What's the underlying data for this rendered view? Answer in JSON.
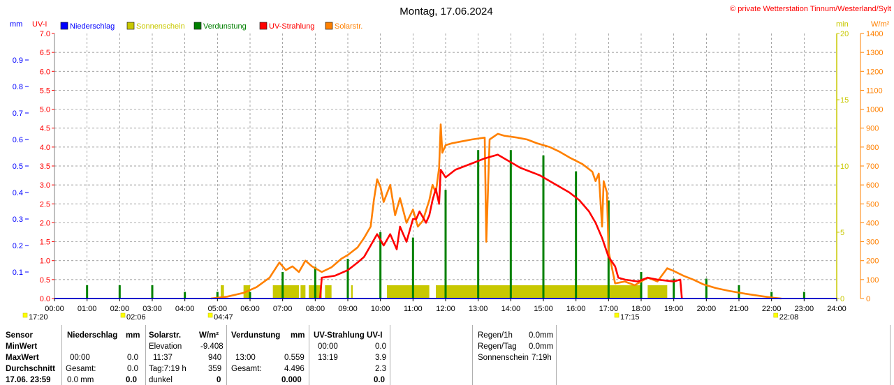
{
  "title": "Montag, 17.06.2024",
  "copyright": "© private Wetterstation Tinnum/Westerland/Sylt",
  "units": {
    "mm": "mm",
    "uvi": "UV-I",
    "min": "min",
    "wm2": "W/m²"
  },
  "legend": [
    {
      "label": "Niederschlag",
      "color": "#0000ff"
    },
    {
      "label": "Sonnenschein",
      "color": "#c8c800"
    },
    {
      "label": "Verdunstung",
      "color": "#008000"
    },
    {
      "label": "UV-Strahlung",
      "color": "#ff0000"
    },
    {
      "label": "Solarstr.",
      "color": "#ff8000"
    }
  ],
  "axis_ticks": {
    "uvi": [
      "0.0",
      "0.5",
      "1.0",
      "1.5",
      "2.0",
      "2.5",
      "3.0",
      "3.5",
      "4.0",
      "4.5",
      "5.0",
      "5.5",
      "6.0",
      "6.5",
      "7.0"
    ],
    "mm": [
      "0.1",
      "0.2",
      "0.3",
      "0.4",
      "0.5",
      "0.6",
      "0.7",
      "0.8",
      "0.9"
    ],
    "min": [
      "0",
      "5",
      "10",
      "15",
      "20"
    ],
    "wm2": [
      "0",
      "100",
      "200",
      "300",
      "400",
      "500",
      "600",
      "700",
      "800",
      "900",
      "1000",
      "1100",
      "1200",
      "1300",
      "1400"
    ],
    "hours": [
      "00:00",
      "01:00",
      "02:00",
      "03:00",
      "04:00",
      "05:00",
      "06:00",
      "07:00",
      "08:00",
      "09:00",
      "10:00",
      "11:00",
      "12:00",
      "13:00",
      "14:00",
      "15:00",
      "16:00",
      "17:00",
      "18:00",
      "19:00",
      "20:00",
      "21:00",
      "22:00",
      "23:00",
      "24:00"
    ]
  },
  "sun_marks": [
    {
      "label": "17:20",
      "hour": -0.9
    },
    {
      "label": "02:06",
      "hour": 2.1
    },
    {
      "label": "04:47",
      "hour": 4.78
    },
    {
      "label": "17:15",
      "hour": 17.25
    },
    {
      "label": "22:08",
      "hour": 22.13
    }
  ],
  "colors": {
    "grid": "#808080",
    "axis_left": "#0000ff",
    "axis_uvi": "#ff0000",
    "axis_min": "#c8c800",
    "axis_wm2": "#ff8000"
  },
  "chart_data": {
    "type": "line",
    "title": "Montag, 17.06.2024",
    "x_range_hours": [
      0,
      24
    ],
    "ylim": {
      "uvi": [
        0,
        7
      ],
      "mm": [
        0,
        1
      ],
      "min": [
        0,
        20
      ],
      "wm2": [
        0,
        1400
      ]
    },
    "series": [
      {
        "name": "Solarstr.",
        "axis": "wm2",
        "color": "#ff8000",
        "points": [
          [
            4.8,
            0
          ],
          [
            5.3,
            10
          ],
          [
            5.8,
            30
          ],
          [
            6.2,
            60
          ],
          [
            6.6,
            110
          ],
          [
            6.9,
            190
          ],
          [
            7.1,
            150
          ],
          [
            7.3,
            170
          ],
          [
            7.5,
            140
          ],
          [
            7.7,
            200
          ],
          [
            7.9,
            170
          ],
          [
            8.2,
            140
          ],
          [
            8.5,
            165
          ],
          [
            8.8,
            210
          ],
          [
            9.0,
            230
          ],
          [
            9.3,
            270
          ],
          [
            9.5,
            320
          ],
          [
            9.7,
            380
          ],
          [
            9.8,
            520
          ],
          [
            9.9,
            630
          ],
          [
            10.0,
            590
          ],
          [
            10.1,
            510
          ],
          [
            10.3,
            600
          ],
          [
            10.45,
            440
          ],
          [
            10.6,
            530
          ],
          [
            10.8,
            400
          ],
          [
            11.0,
            470
          ],
          [
            11.15,
            380
          ],
          [
            11.3,
            410
          ],
          [
            11.5,
            520
          ],
          [
            11.6,
            600
          ],
          [
            11.7,
            560
          ],
          [
            11.8,
            690
          ],
          [
            11.85,
            920
          ],
          [
            11.9,
            770
          ],
          [
            12.0,
            810
          ],
          [
            12.2,
            820
          ],
          [
            12.5,
            830
          ],
          [
            12.8,
            840
          ],
          [
            13.0,
            845
          ],
          [
            13.2,
            850
          ],
          [
            13.25,
            300
          ],
          [
            13.35,
            840
          ],
          [
            13.6,
            870
          ],
          [
            13.8,
            860
          ],
          [
            14.2,
            850
          ],
          [
            14.5,
            840
          ],
          [
            14.8,
            820
          ],
          [
            15.2,
            800
          ],
          [
            15.5,
            775
          ],
          [
            15.8,
            745
          ],
          [
            16.2,
            710
          ],
          [
            16.5,
            670
          ],
          [
            16.6,
            620
          ],
          [
            16.7,
            660
          ],
          [
            16.8,
            380
          ],
          [
            16.85,
            620
          ],
          [
            16.95,
            560
          ],
          [
            17.0,
            250
          ],
          [
            17.2,
            80
          ],
          [
            17.5,
            90
          ],
          [
            17.8,
            70
          ],
          [
            18.2,
            110
          ],
          [
            18.5,
            90
          ],
          [
            18.8,
            160
          ],
          [
            19.0,
            145
          ],
          [
            19.3,
            120
          ],
          [
            19.6,
            100
          ],
          [
            19.9,
            75
          ],
          [
            20.3,
            55
          ],
          [
            20.7,
            40
          ],
          [
            21.2,
            25
          ],
          [
            21.7,
            12
          ],
          [
            22.1,
            3
          ],
          [
            22.3,
            0
          ]
        ]
      },
      {
        "name": "UV-Strahlung",
        "axis": "uvi",
        "color": "#ff0000",
        "points": [
          [
            8.15,
            0
          ],
          [
            8.2,
            0.55
          ],
          [
            8.6,
            0.6
          ],
          [
            9.0,
            0.75
          ],
          [
            9.3,
            0.95
          ],
          [
            9.5,
            1.1
          ],
          [
            9.7,
            1.4
          ],
          [
            9.9,
            1.7
          ],
          [
            10.1,
            1.4
          ],
          [
            10.3,
            1.7
          ],
          [
            10.5,
            1.3
          ],
          [
            10.6,
            1.9
          ],
          [
            10.8,
            1.5
          ],
          [
            11.0,
            2.1
          ],
          [
            11.1,
            2.1
          ],
          [
            11.2,
            2.3
          ],
          [
            11.4,
            2.0
          ],
          [
            11.5,
            2.2
          ],
          [
            11.6,
            2.6
          ],
          [
            11.7,
            2.9
          ],
          [
            11.8,
            2.5
          ],
          [
            11.85,
            3.4
          ],
          [
            12.0,
            3.2
          ],
          [
            12.3,
            3.4
          ],
          [
            12.6,
            3.5
          ],
          [
            12.9,
            3.6
          ],
          [
            13.2,
            3.7
          ],
          [
            13.6,
            3.8
          ],
          [
            14.0,
            3.6
          ],
          [
            14.3,
            3.45
          ],
          [
            14.6,
            3.35
          ],
          [
            14.9,
            3.25
          ],
          [
            15.2,
            3.1
          ],
          [
            15.5,
            2.95
          ],
          [
            15.8,
            2.8
          ],
          [
            16.1,
            2.6
          ],
          [
            16.4,
            2.3
          ],
          [
            16.6,
            2.0
          ],
          [
            16.8,
            1.6
          ],
          [
            17.0,
            1.1
          ],
          [
            17.2,
            0.85
          ],
          [
            17.3,
            0.55
          ],
          [
            17.5,
            0.5
          ],
          [
            17.9,
            0.45
          ],
          [
            18.2,
            0.55
          ],
          [
            18.5,
            0.5
          ],
          [
            19.0,
            0.45
          ],
          [
            19.2,
            0.5
          ],
          [
            19.25,
            0
          ]
        ]
      },
      {
        "name": "Verdunstung",
        "axis": "mm",
        "color": "#008000",
        "style": "spikes",
        "points": [
          [
            1.0,
            0.05
          ],
          [
            2.0,
            0.05
          ],
          [
            3.0,
            0.05
          ],
          [
            4.0,
            0.025
          ],
          [
            5.0,
            0.025
          ],
          [
            6.0,
            0.025
          ],
          [
            7.0,
            0.1
          ],
          [
            8.0,
            0.12
          ],
          [
            9.0,
            0.15
          ],
          [
            10.0,
            0.25
          ],
          [
            11.0,
            0.23
          ],
          [
            12.0,
            0.41
          ],
          [
            13.0,
            0.56
          ],
          [
            14.0,
            0.56
          ],
          [
            15.0,
            0.54
          ],
          [
            16.0,
            0.48
          ],
          [
            17.0,
            0.37
          ],
          [
            18.0,
            0.1
          ],
          [
            19.0,
            0.075
          ],
          [
            20.0,
            0.075
          ],
          [
            21.0,
            0.05
          ],
          [
            22.0,
            0.025
          ],
          [
            23.0,
            0.025
          ]
        ]
      },
      {
        "name": "Sonnenschein",
        "axis": "min",
        "color": "#c8c800",
        "style": "bars",
        "blocks": [
          [
            5.1,
            5.2
          ],
          [
            5.8,
            6.0
          ],
          [
            6.7,
            7.5
          ],
          [
            7.55,
            7.7
          ],
          [
            7.8,
            8.2
          ],
          [
            8.3,
            8.5
          ],
          [
            9.1,
            9.15
          ],
          [
            10.2,
            11.5
          ],
          [
            11.7,
            18.0
          ],
          [
            18.2,
            18.8
          ]
        ],
        "level": 1.0
      }
    ]
  },
  "table": {
    "col_sensor": {
      "header": "Sensor",
      "rows": [
        "MinWert",
        "MaxWert",
        "Durchschnitt",
        "17.06. 23:59"
      ]
    },
    "niederschlag": {
      "header": "Niederschlag",
      "unit": "mm",
      "r2_time": "00:00",
      "r2_val": "0.0",
      "r3_lbl": "Gesamt:",
      "r3_val": "0.0",
      "r4_lbl": "0.0 mm",
      "r4_val": "0.0"
    },
    "solar": {
      "header": "Solarstr.",
      "unit": "W/m²",
      "r1_lbl": "Elevation",
      "r1_val": "-9.408",
      "r2_time": "11:37",
      "r2_val": "940",
      "r3_lbl": "Tag:7:19 h",
      "r3_val": "359",
      "r4_lbl": "dunkel",
      "r4_val": "0"
    },
    "verdunstung": {
      "header": "Verdunstung",
      "unit": "mm",
      "r2_time": "13:00",
      "r2_val": "0.559",
      "r3_lbl": "Gesamt:",
      "r3_val": "4.496",
      "r4_val": "0.000"
    },
    "uv": {
      "header": "UV-Strahlung UV-I",
      "r1_time": "00:00",
      "r1_val": "0.0",
      "r2_time": "13:19",
      "r2_val": "3.9",
      "r3_val": "2.3",
      "r4_val": "0.0"
    },
    "summary": [
      {
        "label": "Regen/1h",
        "value": "0.0mm"
      },
      {
        "label": "Regen/Tag",
        "value": "0.0mm"
      },
      {
        "label": "Sonnenschein",
        "value": "7:19h"
      }
    ]
  }
}
